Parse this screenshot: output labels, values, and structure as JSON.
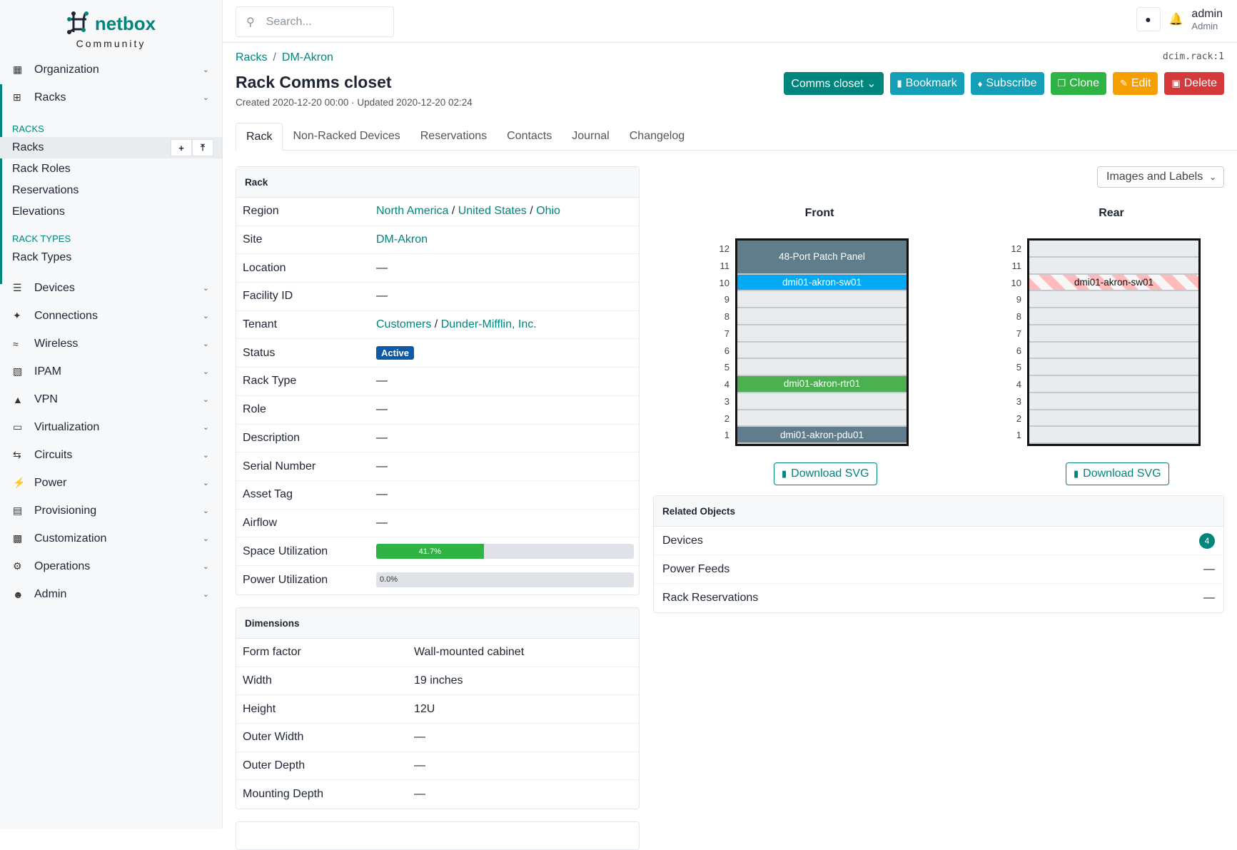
{
  "brand": {
    "name": "netbox",
    "edition": "Community"
  },
  "sidebar": {
    "top": [
      {
        "label": "Organization",
        "icon": "building-icon"
      },
      {
        "label": "Racks",
        "icon": "rack-icon"
      }
    ],
    "sections": [
      {
        "title": "RACKS",
        "items": [
          "Racks",
          "Rack Roles",
          "Reservations",
          "Elevations"
        ]
      },
      {
        "title": "RACK TYPES",
        "items": [
          "Rack Types"
        ]
      }
    ],
    "bottom": [
      {
        "label": "Devices",
        "icon": "server-icon"
      },
      {
        "label": "Connections",
        "icon": "plug-icon"
      },
      {
        "label": "Wireless",
        "icon": "wifi-icon"
      },
      {
        "label": "IPAM",
        "icon": "counter-icon"
      },
      {
        "label": "VPN",
        "icon": "tunnel-icon"
      },
      {
        "label": "Virtualization",
        "icon": "monitor-icon"
      },
      {
        "label": "Circuits",
        "icon": "transit-icon"
      },
      {
        "label": "Power",
        "icon": "bolt-icon"
      },
      {
        "label": "Provisioning",
        "icon": "file-icon"
      },
      {
        "label": "Customization",
        "icon": "toolbox-icon"
      },
      {
        "label": "Operations",
        "icon": "cogs-icon"
      },
      {
        "label": "Admin",
        "icon": "users-icon"
      }
    ]
  },
  "header": {
    "search_placeholder": "Search...",
    "user": "admin",
    "role": "Admin"
  },
  "breadcrumb": [
    "Racks",
    "DM-Akron"
  ],
  "object_id": "dcim.rack:1",
  "title": "Rack Comms closet",
  "meta": "Created 2020-12-20 00:00 · Updated 2020-12-20 02:24",
  "actions": [
    {
      "label": "Comms closet ⌄",
      "color": "#00857d",
      "icon": ""
    },
    {
      "label": "Bookmark",
      "color": "#139fb6",
      "icon": "bookmark-icon"
    },
    {
      "label": "Subscribe",
      "color": "#139fb6",
      "icon": "bell-plus-icon"
    },
    {
      "label": "Clone",
      "color": "#2fb344",
      "icon": "copy-icon"
    },
    {
      "label": "Edit",
      "color": "#f59f00",
      "icon": "pencil-icon"
    },
    {
      "label": "Delete",
      "color": "#d63939",
      "icon": "trash-icon"
    }
  ],
  "tabs": [
    "Rack",
    "Non-Racked Devices",
    "Reservations",
    "Contacts",
    "Journal",
    "Changelog"
  ],
  "rack_card": {
    "title": "Rack",
    "region": [
      "North America",
      "United States",
      "Ohio"
    ],
    "site": "DM-Akron",
    "tenant": [
      "Customers",
      "Dunder-Mifflin, Inc."
    ],
    "status": "Active",
    "labels": {
      "region": "Region",
      "site": "Site",
      "location": "Location",
      "facility": "Facility ID",
      "tenant": "Tenant",
      "status": "Status",
      "rack_type": "Rack Type",
      "role": "Role",
      "description": "Description",
      "serial": "Serial Number",
      "asset": "Asset Tag",
      "airflow": "Airflow",
      "space": "Space Utilization",
      "power": "Power Utilization"
    },
    "empty": "—",
    "space_utilization": 41.7,
    "space_label": "41.7%",
    "power_utilization": 0.0,
    "power_label": "0.0%"
  },
  "dimensions": {
    "title": "Dimensions",
    "rows": [
      [
        "Form factor",
        "Wall-mounted cabinet"
      ],
      [
        "Width",
        "19 inches"
      ],
      [
        "Height",
        "12U"
      ],
      [
        "Outer Width",
        "—"
      ],
      [
        "Outer Depth",
        "—"
      ],
      [
        "Mounting Depth",
        "—"
      ]
    ]
  },
  "elevation": {
    "view": "Images and Labels",
    "download": "Download SVG",
    "units": 12,
    "front": {
      "title": "Front",
      "devices": [
        {
          "name": "48-Port Patch Panel",
          "u": 11,
          "height": 2,
          "color": "#607d8b"
        },
        {
          "name": "dmi01-akron-sw01",
          "u": 10,
          "height": 1,
          "color": "#03a9f4"
        },
        {
          "name": "dmi01-akron-rtr01",
          "u": 4,
          "height": 1,
          "color": "#4caf50"
        },
        {
          "name": "dmi01-akron-pdu01",
          "u": 1,
          "height": 1,
          "color": "#607d8b"
        }
      ]
    },
    "rear": {
      "title": "Rear",
      "devices": [
        {
          "name": "dmi01-akron-sw01",
          "u": 10,
          "height": 1,
          "color": "striped"
        }
      ]
    }
  },
  "related": {
    "title": "Related Objects",
    "items": [
      {
        "label": "Devices",
        "count": "4"
      },
      {
        "label": "Power Feeds",
        "count": "—"
      },
      {
        "label": "Rack Reservations",
        "count": "—"
      }
    ]
  }
}
